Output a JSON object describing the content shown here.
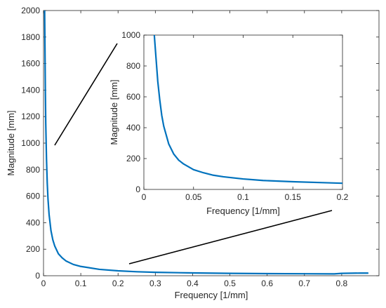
{
  "chart_data": [
    {
      "type": "line",
      "xlabel": "Frequency [1/mm]",
      "ylabel": "Magnitude [mm]",
      "xlim": [
        0,
        0.9
      ],
      "ylim": [
        0,
        2000
      ],
      "xticks": [
        0,
        0.1,
        0.2,
        0.3,
        0.4,
        0.5,
        0.6,
        0.7,
        0.8
      ],
      "xtick_labels": [
        "0",
        "0.1",
        "0.2",
        "0.3",
        "0.4",
        "0.5",
        "0.6",
        "0.7",
        "0.8"
      ],
      "yticks": [
        0,
        200,
        400,
        600,
        800,
        1000,
        1200,
        1400,
        1600,
        1800,
        2000
      ],
      "ytick_labels": [
        "0",
        "200",
        "400",
        "600",
        "800",
        "1000",
        "1200",
        "1400",
        "1600",
        "1800",
        "2000"
      ],
      "line_color": "#0072BD",
      "series": [
        {
          "x": [
            0.003,
            0.004,
            0.005,
            0.006,
            0.008,
            0.01,
            0.012,
            0.015,
            0.02,
            0.025,
            0.03,
            0.04,
            0.05,
            0.06,
            0.08,
            0.1,
            0.15,
            0.2,
            0.25,
            0.3,
            0.4,
            0.5,
            0.6,
            0.7,
            0.78,
            0.8,
            0.85,
            0.87
          ],
          "y": [
            2000,
            1700,
            1380,
            1150,
            880,
            700,
            580,
            460,
            340,
            270,
            225,
            165,
            135,
            112,
            85,
            70,
            48,
            37,
            30,
            26,
            21,
            18,
            16,
            15,
            14,
            18,
            20,
            20
          ]
        }
      ]
    },
    {
      "type": "line",
      "xlabel": "Frequency [1/mm]",
      "ylabel": "Magnitude [mm]",
      "xlim": [
        0,
        0.2
      ],
      "ylim": [
        0,
        1000
      ],
      "xticks": [
        0,
        0.05,
        0.1,
        0.15,
        0.2
      ],
      "xtick_labels": [
        "0",
        "0.05",
        "0.1",
        "0.15",
        "0.2"
      ],
      "yticks": [
        0,
        200,
        400,
        600,
        800,
        1000
      ],
      "ytick_labels": [
        "0",
        "200",
        "400",
        "600",
        "800",
        "1000"
      ],
      "line_color": "#0072BD",
      "series": [
        {
          "x": [
            0.0105,
            0.012,
            0.014,
            0.016,
            0.018,
            0.02,
            0.025,
            0.03,
            0.035,
            0.04,
            0.05,
            0.06,
            0.07,
            0.08,
            0.1,
            0.12,
            0.15,
            0.18,
            0.2
          ],
          "y": [
            1000,
            870,
            700,
            580,
            480,
            410,
            295,
            230,
            190,
            165,
            128,
            108,
            92,
            82,
            68,
            58,
            50,
            44,
            40
          ]
        }
      ]
    }
  ],
  "annotation_lines": [
    {
      "from": [
        0.03,
        1000
      ],
      "to": [
        0.2,
        800
      ]
    },
    {
      "from": [
        0.22,
        70
      ],
      "to": [
        0.2,
        0.12
      ]
    }
  ]
}
